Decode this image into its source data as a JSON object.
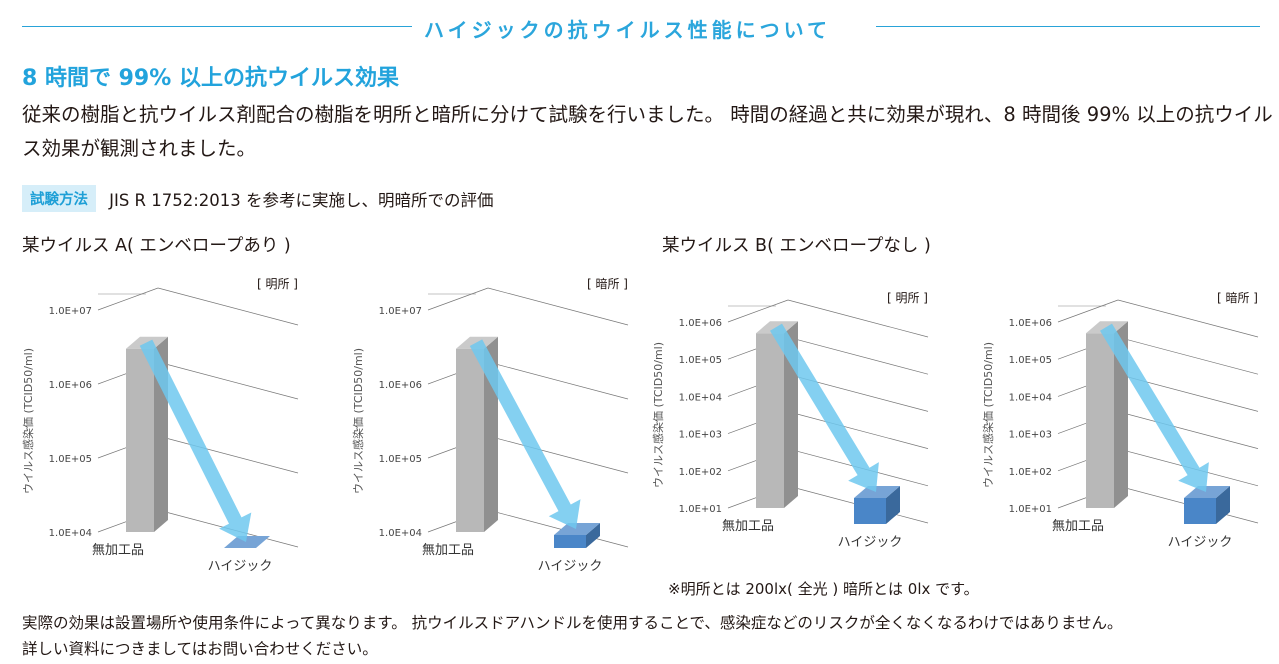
{
  "header": {
    "title": "ハイジックの抗ウイルス性能について"
  },
  "headline": "8 時間で 99% 以上の抗ウイルス効果",
  "intro": "従来の樹脂と抗ウイルス剤配合の樹脂を明所と暗所に分けて試験を行いました。 時間の経過と共に効果が現れ、8 時間後 99% 以上の抗ウイルス効果が観測されました。",
  "method": {
    "badge": "試験方法",
    "text": "JIS R 1752:2013 を参考に実施し、明暗所での評価"
  },
  "virus_a_title": "某ウイルス A( エンベロープあり )",
  "virus_b_title": "某ウイルス B( エンベロープなし )",
  "chart_data": [
    {
      "type": "bar",
      "scale": "log",
      "title": "[ 明所 ]",
      "ylabel": "ウイルス感染価 (TCID50/ml)",
      "yticks": [
        "1.0E+04",
        "1.0E+05",
        "1.0E+06",
        "1.0E+07"
      ],
      "ylim": [
        10000,
        10000000
      ],
      "categories": [
        "無加工品",
        "ハイジック"
      ],
      "values": [
        3000000,
        10000
      ],
      "arrow": true
    },
    {
      "type": "bar",
      "scale": "log",
      "title": "[ 暗所 ]",
      "ylabel": "ウイルス感染価 (TCID50/ml)",
      "yticks": [
        "1.0E+04",
        "1.0E+05",
        "1.0E+06",
        "1.0E+07"
      ],
      "ylim": [
        10000,
        10000000
      ],
      "categories": [
        "無加工品",
        "ハイジック"
      ],
      "values": [
        3000000,
        15000
      ],
      "arrow": true
    },
    {
      "type": "bar",
      "scale": "log",
      "title": "[ 明所 ]",
      "ylabel": "ウイルス感染価 (TCID50/ml)",
      "yticks": [
        "1.0E+01",
        "1.0E+02",
        "1.0E+03",
        "1.0E+04",
        "1.0E+05",
        "1.0E+06"
      ],
      "ylim": [
        10,
        1000000
      ],
      "categories": [
        "無加工品",
        "ハイジック"
      ],
      "values": [
        500000,
        50
      ],
      "arrow": true
    },
    {
      "type": "bar",
      "scale": "log",
      "title": "[ 暗所 ]",
      "ylabel": "ウイルス感染価 (TCID50/ml)",
      "yticks": [
        "1.0E+01",
        "1.0E+02",
        "1.0E+03",
        "1.0E+04",
        "1.0E+05",
        "1.0E+06"
      ],
      "ylim": [
        10,
        1000000
      ],
      "categories": [
        "無加工品",
        "ハイジック"
      ],
      "values": [
        500000,
        50
      ],
      "arrow": true
    }
  ],
  "note": "※明所とは 200lx( 全光 )  暗所とは 0lx です。",
  "footer": [
    "実際の効果は設置場所や使用条件によって異なります。 抗ウイルスドアハンドルを使用することで、感染症などのリスクが全くなくなるわけではありません。",
    "詳しい資料につきましてはお問い合わせください。"
  ],
  "colors": {
    "accent": "#2ba6dc",
    "bar_gray": "#b8b8b8",
    "bar_blue": "#4a86c8",
    "arrow": "#6fc8ef"
  }
}
